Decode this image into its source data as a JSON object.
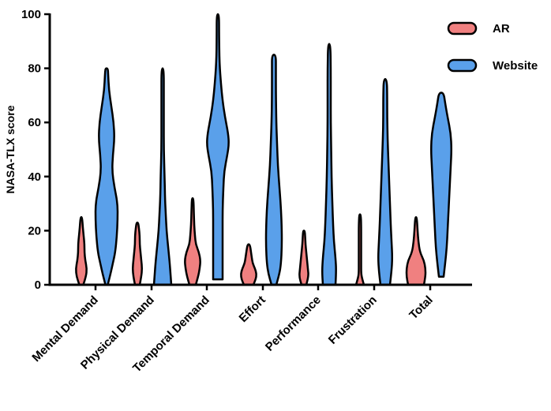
{
  "chart_data": {
    "type": "violin",
    "ylabel": "NASA-TLX score",
    "ylim": [
      0,
      100
    ],
    "yticks": [
      0,
      20,
      40,
      60,
      80,
      100
    ],
    "categories": [
      "Mental Demand",
      "Physical Demand",
      "Temporal Demand",
      "Effort",
      "Performance",
      "Frustration",
      "Total"
    ],
    "colors": {
      "AR": "#f08080",
      "Website": "#5aa0ea"
    },
    "legend_position": "top-right",
    "series": [
      {
        "name": "AR",
        "color": "#f08080",
        "violins": [
          {
            "profile": [
              [
                0,
                2.5
              ],
              [
                3,
                6
              ],
              [
                6,
                7
              ],
              [
                9,
                5
              ],
              [
                12,
                4
              ],
              [
                15,
                4
              ],
              [
                18,
                3
              ],
              [
                21,
                2
              ],
              [
                25,
                1
              ]
            ]
          },
          {
            "profile": [
              [
                0,
                3
              ],
              [
                3,
                5
              ],
              [
                6,
                6
              ],
              [
                9,
                5
              ],
              [
                12,
                4
              ],
              [
                15,
                3
              ],
              [
                18,
                3
              ],
              [
                21,
                2
              ],
              [
                23,
                1
              ]
            ]
          },
          {
            "profile": [
              [
                0,
                4
              ],
              [
                3,
                7
              ],
              [
                6,
                9
              ],
              [
                9,
                10
              ],
              [
                12,
                8
              ],
              [
                15,
                4
              ],
              [
                18,
                3
              ],
              [
                22,
                2
              ],
              [
                27,
                1.5
              ],
              [
                32,
                1
              ]
            ]
          },
          {
            "profile": [
              [
                0,
                6
              ],
              [
                2,
                9
              ],
              [
                4,
                10
              ],
              [
                6,
                8
              ],
              [
                8,
                5
              ],
              [
                10,
                4
              ],
              [
                12,
                3
              ],
              [
                15,
                1.5
              ]
            ]
          },
          {
            "profile": [
              [
                0,
                3
              ],
              [
                3,
                6
              ],
              [
                6,
                5
              ],
              [
                9,
                4
              ],
              [
                12,
                3
              ],
              [
                15,
                2
              ],
              [
                18,
                1.5
              ],
              [
                20,
                1
              ]
            ]
          },
          {
            "profile": [
              [
                0,
                5
              ],
              [
                2,
                3
              ],
              [
                4,
                1.5
              ],
              [
                8,
                1.5
              ],
              [
                12,
                1.5
              ],
              [
                17,
                1.5
              ],
              [
                22,
                1.5
              ],
              [
                26,
                1
              ]
            ]
          },
          {
            "profile": [
              [
                0,
                10
              ],
              [
                3,
                12
              ],
              [
                6,
                12
              ],
              [
                9,
                10
              ],
              [
                12,
                5
              ],
              [
                16,
                3
              ],
              [
                20,
                2
              ],
              [
                25,
                1
              ]
            ]
          }
        ]
      },
      {
        "name": "Website",
        "color": "#5aa0ea",
        "violins": [
          {
            "profile": [
              [
                0,
                1.5
              ],
              [
                4,
                5
              ],
              [
                8,
                8
              ],
              [
                12,
                11
              ],
              [
                18,
                13
              ],
              [
                24,
                14
              ],
              [
                30,
                14
              ],
              [
                36,
                10
              ],
              [
                42,
                7
              ],
              [
                48,
                8
              ],
              [
                54,
                10
              ],
              [
                60,
                9
              ],
              [
                66,
                6
              ],
              [
                72,
                3
              ],
              [
                78,
                2
              ],
              [
                80,
                1.5
              ]
            ]
          },
          {
            "profile": [
              [
                0,
                11
              ],
              [
                4,
                10
              ],
              [
                8,
                9
              ],
              [
                14,
                7
              ],
              [
                20,
                5
              ],
              [
                26,
                4
              ],
              [
                32,
                3
              ],
              [
                40,
                2.5
              ],
              [
                50,
                1.5
              ],
              [
                60,
                1.5
              ],
              [
                70,
                1.5
              ],
              [
                80,
                1.5
              ]
            ]
          },
          {
            "profile": [
              [
                2,
                6
              ],
              [
                8,
                6
              ],
              [
                14,
                6
              ],
              [
                20,
                6
              ],
              [
                28,
                6
              ],
              [
                36,
                7
              ],
              [
                42,
                8
              ],
              [
                48,
                12
              ],
              [
                52,
                14
              ],
              [
                56,
                13
              ],
              [
                62,
                9
              ],
              [
                68,
                6
              ],
              [
                74,
                4
              ],
              [
                82,
                2
              ],
              [
                92,
                1.5
              ],
              [
                100,
                1.5
              ]
            ]
          },
          {
            "profile": [
              [
                0,
                3
              ],
              [
                4,
                7
              ],
              [
                8,
                9
              ],
              [
                14,
                10
              ],
              [
                20,
                10
              ],
              [
                28,
                9
              ],
              [
                36,
                7
              ],
              [
                44,
                5
              ],
              [
                52,
                4
              ],
              [
                60,
                3
              ],
              [
                70,
                2.5
              ],
              [
                80,
                2.5
              ],
              [
                85,
                2.5
              ]
            ]
          },
          {
            "profile": [
              [
                0,
                8
              ],
              [
                5,
                9
              ],
              [
                10,
                8
              ],
              [
                16,
                6
              ],
              [
                22,
                5
              ],
              [
                30,
                4
              ],
              [
                40,
                3
              ],
              [
                50,
                2.5
              ],
              [
                60,
                2
              ],
              [
                70,
                2
              ],
              [
                80,
                2
              ],
              [
                89,
                1.5
              ]
            ]
          },
          {
            "profile": [
              [
                0,
                6
              ],
              [
                5,
                8
              ],
              [
                10,
                9
              ],
              [
                16,
                8
              ],
              [
                22,
                7
              ],
              [
                30,
                6
              ],
              [
                38,
                5
              ],
              [
                46,
                4
              ],
              [
                54,
                3
              ],
              [
                62,
                2.5
              ],
              [
                70,
                2.5
              ],
              [
                76,
                2
              ]
            ]
          },
          {
            "profile": [
              [
                3,
                3
              ],
              [
                8,
                5
              ],
              [
                14,
                7
              ],
              [
                20,
                8
              ],
              [
                26,
                9
              ],
              [
                32,
                10
              ],
              [
                38,
                11
              ],
              [
                44,
                12
              ],
              [
                50,
                13
              ],
              [
                56,
                12
              ],
              [
                62,
                8
              ],
              [
                67,
                5
              ],
              [
                71,
                3
              ]
            ]
          }
        ]
      }
    ]
  }
}
